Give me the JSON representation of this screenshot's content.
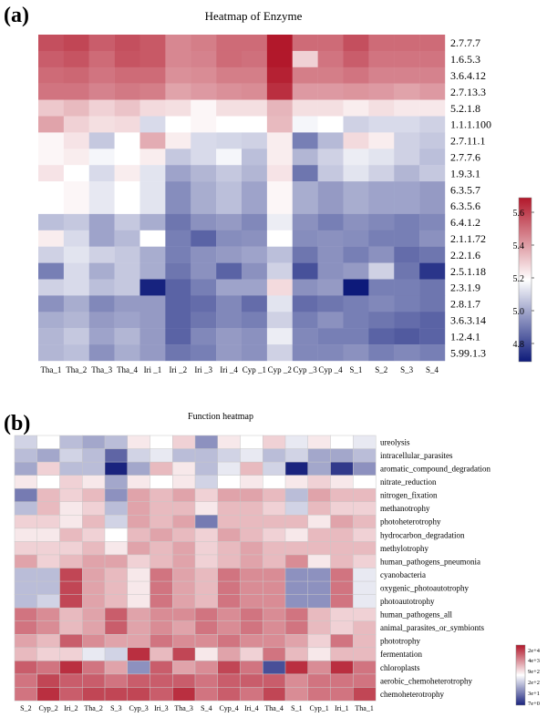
{
  "chart_data": [
    {
      "type": "heatmap",
      "panel_label": "(a)",
      "title": "Heatmap of Enzyme",
      "rows": [
        "2.7.7.7",
        "1.6.5.3",
        "3.6.4.12",
        "2.7.13.3",
        "5.2.1.8",
        "1.1.1.100",
        "2.7.11.1",
        "2.7.7.6",
        "1.9.3.1",
        "6.3.5.7",
        "6.3.5.6",
        "6.4.1.2",
        "2.1.1.72",
        "2.2.1.6",
        "2.5.1.18",
        "2.3.1.9",
        "2.8.1.7",
        "3.6.3.14",
        "1.2.4.1",
        "5.99.1.3"
      ],
      "columns": [
        "Tha_1",
        "Tha_2",
        "Tha_3",
        "Tha_4",
        "Iri _1",
        "Iri _2",
        "Iri _3",
        "Iri _4",
        "Cyp _1",
        "Cyp _2",
        "Cyp _3",
        "Cyp _4",
        "S_1",
        "S_2",
        "S_3",
        "S_4"
      ],
      "values": [
        [
          5.58,
          5.6,
          5.55,
          5.58,
          5.56,
          5.46,
          5.48,
          5.52,
          5.52,
          5.72,
          5.52,
          5.52,
          5.58,
          5.52,
          5.52,
          5.52
        ],
        [
          5.55,
          5.57,
          5.52,
          5.57,
          5.56,
          5.46,
          5.47,
          5.52,
          5.51,
          5.7,
          5.3,
          5.5,
          5.55,
          5.5,
          5.5,
          5.5
        ],
        [
          5.52,
          5.53,
          5.5,
          5.52,
          5.52,
          5.44,
          5.45,
          5.48,
          5.48,
          5.68,
          5.48,
          5.48,
          5.5,
          5.47,
          5.47,
          5.47
        ],
        [
          5.5,
          5.5,
          5.47,
          5.49,
          5.48,
          5.4,
          5.42,
          5.44,
          5.45,
          5.65,
          5.42,
          5.42,
          5.43,
          5.42,
          5.4,
          5.42
        ],
        [
          5.32,
          5.35,
          5.3,
          5.33,
          5.28,
          5.27,
          5.22,
          5.27,
          5.27,
          5.36,
          5.27,
          5.27,
          5.24,
          5.27,
          5.25,
          5.25
        ],
        [
          5.4,
          5.3,
          5.27,
          5.28,
          5.12,
          5.2,
          5.22,
          5.2,
          5.2,
          5.35,
          5.18,
          5.2,
          5.1,
          5.12,
          5.12,
          5.1
        ],
        [
          5.22,
          5.26,
          5.08,
          5.2,
          5.38,
          5.24,
          5.12,
          5.11,
          5.1,
          5.24,
          4.92,
          5.05,
          5.28,
          5.24,
          5.1,
          5.08
        ],
        [
          5.22,
          5.24,
          5.18,
          5.2,
          5.24,
          5.08,
          5.12,
          5.18,
          5.06,
          5.24,
          5.04,
          5.1,
          5.16,
          5.14,
          5.1,
          5.06
        ],
        [
          5.26,
          5.2,
          5.12,
          5.24,
          5.14,
          5.0,
          5.04,
          5.08,
          5.04,
          5.26,
          4.9,
          5.08,
          5.14,
          5.1,
          5.04,
          5.08
        ],
        [
          5.2,
          5.22,
          5.15,
          5.2,
          5.14,
          4.95,
          5.02,
          5.06,
          5.0,
          5.22,
          5.02,
          4.98,
          5.02,
          5.0,
          5.0,
          4.98
        ],
        [
          5.2,
          5.22,
          5.15,
          5.2,
          5.14,
          4.95,
          5.02,
          5.06,
          5.0,
          5.22,
          5.02,
          4.98,
          5.02,
          5.0,
          5.0,
          4.98
        ],
        [
          5.06,
          5.08,
          5.0,
          5.08,
          5.02,
          4.9,
          4.96,
          4.98,
          4.94,
          5.16,
          4.96,
          4.92,
          4.96,
          4.94,
          4.92,
          4.94
        ],
        [
          5.24,
          5.12,
          5.0,
          5.05,
          5.2,
          4.92,
          4.86,
          4.95,
          4.96,
          5.2,
          4.95,
          4.96,
          4.95,
          4.92,
          4.92,
          4.96
        ],
        [
          5.1,
          5.14,
          5.1,
          5.08,
          5.02,
          4.92,
          4.96,
          4.98,
          5.0,
          5.06,
          4.9,
          4.96,
          4.92,
          4.96,
          4.88,
          4.9
        ],
        [
          4.92,
          5.12,
          5.02,
          5.08,
          5.02,
          4.9,
          4.96,
          4.86,
          4.96,
          5.1,
          4.82,
          4.96,
          4.98,
          5.1,
          4.9,
          4.76
        ],
        [
          5.1,
          5.12,
          5.06,
          5.08,
          4.72,
          4.86,
          4.92,
          5.0,
          5.0,
          5.28,
          4.96,
          4.98,
          4.7,
          4.92,
          4.92,
          4.9
        ],
        [
          4.96,
          5.02,
          4.94,
          4.98,
          4.98,
          4.86,
          4.88,
          4.94,
          4.88,
          5.14,
          4.88,
          4.9,
          4.92,
          4.94,
          4.92,
          4.9
        ],
        [
          5.02,
          5.04,
          4.98,
          5.0,
          4.98,
          4.86,
          4.9,
          4.94,
          4.92,
          5.1,
          4.92,
          4.96,
          4.92,
          4.9,
          4.88,
          4.86
        ],
        [
          5.04,
          5.08,
          5.0,
          5.04,
          4.98,
          4.86,
          4.94,
          4.98,
          4.96,
          5.16,
          4.94,
          4.92,
          4.92,
          4.86,
          4.84,
          4.86
        ],
        [
          5.04,
          5.06,
          4.96,
          5.02,
          4.98,
          4.9,
          4.92,
          4.98,
          4.96,
          5.1,
          4.94,
          4.94,
          4.96,
          4.92,
          4.94,
          4.92
        ]
      ],
      "colorbar": {
        "min": 4.7,
        "max": 5.7,
        "ticks": [
          "5.6",
          "5.4",
          "5.2",
          "5.0",
          "4.8"
        ],
        "low_color": "#0d1a7a",
        "mid_color": "#ffffff",
        "high_color": "#b2182b"
      }
    },
    {
      "type": "heatmap",
      "panel_label": "(b)",
      "title": "Function heatmap",
      "rows": [
        "ureolysis",
        "intracellular_parasites",
        "aromatic_compound_degradation",
        "nitrate_reduction",
        "nitrogen_fixation",
        "methanotrophy",
        "photoheterotrophy",
        "hydrocarbon_degradation",
        "methylotrophy",
        "human_pathogens_pneumonia",
        "cyanobacteria",
        "oxygenic_photoautotrophy",
        "photoautotrophy",
        "human_pathogens_all",
        "animal_parasites_or_symbionts",
        "phototrophy",
        "fermentation",
        "chloroplasts",
        "aerobic_chemoheterotrophy",
        "chemoheterotrophy"
      ],
      "columns": [
        "S_2",
        "Cyp_2",
        "Iri_2",
        "Tha_2",
        "S_3",
        "Cyp_3",
        "Iri_3",
        "Tha_3",
        "S_4",
        "Cyp_4",
        "Iri_4",
        "Tha_4",
        "S_1",
        "Cyp_1",
        "Iri_1",
        "Tha_1"
      ],
      "values": [
        [
          -0.2,
          0.0,
          -0.3,
          -0.4,
          -0.3,
          0.1,
          0.0,
          0.2,
          -0.5,
          0.1,
          0.0,
          0.2,
          -0.1,
          0.1,
          0.0,
          -0.1
        ],
        [
          -0.3,
          -0.4,
          -0.2,
          -0.3,
          -0.7,
          -0.2,
          -0.1,
          -0.3,
          -0.3,
          -0.2,
          -0.1,
          -0.3,
          -0.2,
          -0.4,
          -0.4,
          -0.3
        ],
        [
          -0.4,
          0.2,
          -0.3,
          -0.3,
          -1.0,
          -0.4,
          0.3,
          0.1,
          -0.3,
          -0.1,
          0.3,
          -0.2,
          -1.0,
          -0.4,
          -0.9,
          -0.5
        ],
        [
          0.1,
          0.0,
          0.2,
          0.1,
          -0.4,
          0.1,
          0.0,
          0.1,
          -0.2,
          0.0,
          0.1,
          0.0,
          0.1,
          0.2,
          0.1,
          0.0
        ],
        [
          -0.6,
          0.3,
          0.2,
          0.3,
          -0.5,
          0.4,
          0.3,
          0.4,
          0.2,
          0.4,
          0.4,
          0.3,
          -0.3,
          0.4,
          0.3,
          0.3
        ],
        [
          -0.3,
          0.3,
          0.1,
          0.2,
          -0.3,
          0.4,
          0.3,
          0.3,
          0.1,
          0.3,
          0.3,
          0.2,
          -0.2,
          0.3,
          0.2,
          0.2
        ],
        [
          0.2,
          0.2,
          0.1,
          0.3,
          -0.2,
          0.4,
          0.3,
          0.4,
          -0.6,
          0.3,
          0.3,
          0.3,
          0.3,
          0.1,
          0.4,
          0.3
        ],
        [
          0.1,
          0.1,
          0.3,
          0.2,
          0.0,
          0.3,
          0.4,
          0.3,
          0.2,
          0.4,
          0.3,
          0.2,
          0.1,
          0.3,
          0.3,
          0.2
        ],
        [
          0.2,
          0.2,
          0.2,
          0.3,
          0.1,
          0.4,
          0.3,
          0.4,
          0.2,
          0.3,
          0.4,
          0.3,
          0.3,
          0.3,
          0.3,
          0.3
        ],
        [
          0.4,
          0.2,
          0.3,
          0.4,
          0.4,
          0.2,
          0.3,
          0.4,
          0.2,
          0.3,
          0.4,
          0.3,
          0.5,
          0.1,
          0.3,
          0.2
        ],
        [
          -0.3,
          -0.3,
          0.8,
          0.4,
          0.3,
          0.1,
          0.6,
          0.4,
          0.3,
          0.6,
          0.5,
          0.5,
          -0.5,
          -0.5,
          0.6,
          -0.1
        ],
        [
          -0.3,
          -0.3,
          0.8,
          0.4,
          0.3,
          0.1,
          0.6,
          0.4,
          0.3,
          0.6,
          0.5,
          0.5,
          -0.5,
          -0.5,
          0.6,
          -0.1
        ],
        [
          -0.3,
          -0.2,
          0.8,
          0.4,
          0.3,
          0.1,
          0.6,
          0.4,
          0.3,
          0.6,
          0.5,
          0.5,
          -0.5,
          -0.5,
          0.6,
          -0.1
        ],
        [
          0.6,
          0.5,
          0.3,
          0.4,
          0.7,
          0.4,
          0.5,
          0.5,
          0.6,
          0.5,
          0.6,
          0.5,
          0.6,
          0.3,
          0.2,
          0.2
        ],
        [
          0.6,
          0.5,
          0.3,
          0.4,
          0.7,
          0.4,
          0.5,
          0.4,
          0.6,
          0.5,
          0.6,
          0.5,
          0.6,
          0.3,
          0.2,
          0.3
        ],
        [
          0.4,
          0.3,
          0.7,
          0.5,
          0.4,
          0.4,
          0.6,
          0.5,
          0.5,
          0.6,
          0.5,
          0.5,
          0.4,
          0.2,
          0.6,
          0.3
        ],
        [
          0.3,
          0.2,
          0.2,
          -0.1,
          -0.2,
          0.9,
          0.3,
          0.8,
          0.1,
          0.4,
          0.2,
          0.6,
          0.3,
          0.1,
          0.3,
          0.3
        ],
        [
          0.7,
          0.6,
          0.9,
          0.6,
          0.4,
          -0.5,
          0.7,
          0.4,
          0.5,
          0.8,
          0.6,
          -0.8,
          0.9,
          0.5,
          0.9,
          0.6
        ],
        [
          0.6,
          0.8,
          0.7,
          0.7,
          0.6,
          0.7,
          0.7,
          0.7,
          0.6,
          0.7,
          0.7,
          0.7,
          0.5,
          0.6,
          0.6,
          0.6
        ],
        [
          0.6,
          0.9,
          0.7,
          0.8,
          0.8,
          0.8,
          0.7,
          0.9,
          0.6,
          0.7,
          0.6,
          0.8,
          0.5,
          0.6,
          0.6,
          0.8
        ]
      ],
      "colorbar": {
        "min": -1.0,
        "max": 1.0,
        "ticks": [
          "2e+4",
          "4e+3",
          "9e+2",
          "2e+2",
          "3e+1",
          "7e+0"
        ],
        "low_color": "#1a237e",
        "mid_color": "#ffffff",
        "high_color": "#b2182b"
      }
    }
  ]
}
